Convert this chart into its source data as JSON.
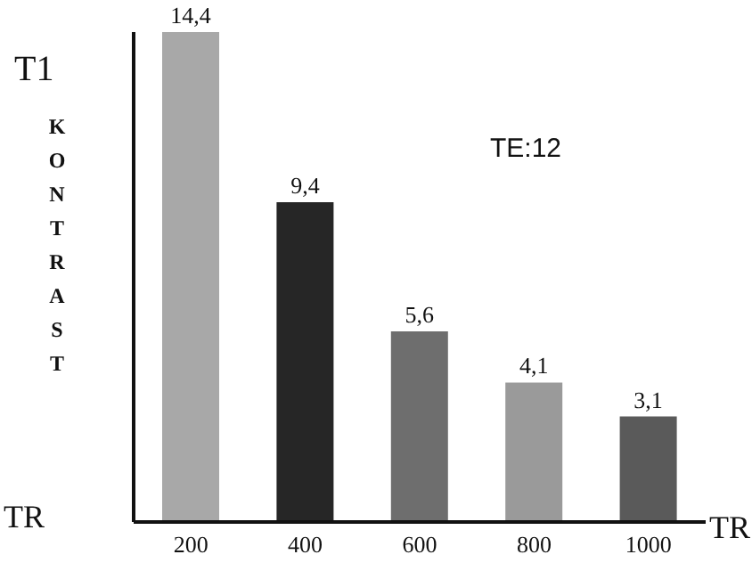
{
  "chart_data": {
    "type": "bar",
    "title": "T1",
    "ylabel": "KONTRAST",
    "xlabel": "TR",
    "annotations": [
      "TE:12",
      "TR"
    ],
    "categories": [
      "200",
      "400",
      "600",
      "800",
      "1000"
    ],
    "values": [
      14.4,
      9.4,
      5.6,
      4.1,
      3.1
    ],
    "value_labels": [
      "14,4",
      "9,4",
      "5,6",
      "4,1",
      "3,1"
    ],
    "colors": [
      "#a8a8a8",
      "#262626",
      "#6e6e6e",
      "#9a9a9a",
      "#5a5a5a"
    ],
    "grid": false,
    "legend": false
  }
}
